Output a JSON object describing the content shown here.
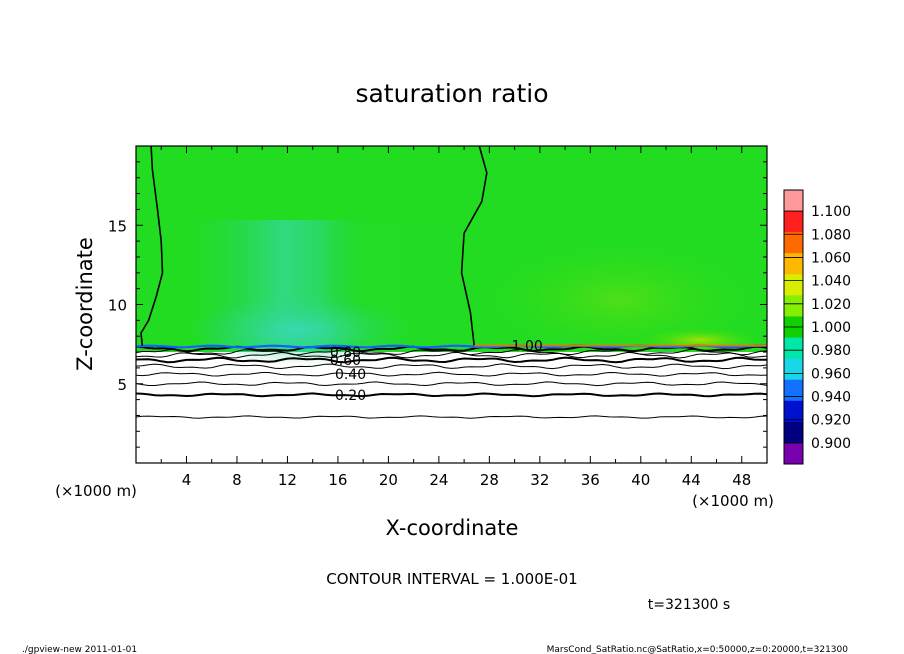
{
  "chart_data": {
    "type": "heatmap",
    "title": "saturation ratio",
    "xlabel": "X-coordinate",
    "ylabel": "Z-coordinate",
    "x_unit": "(×1000 m)",
    "y_unit": "(×1000 m)",
    "xlim": [
      0,
      50
    ],
    "ylim": [
      0,
      20
    ],
    "x_ticks": [
      4,
      8,
      12,
      16,
      20,
      24,
      28,
      32,
      36,
      40,
      44,
      48
    ],
    "y_ticks": [
      5,
      10,
      15
    ],
    "colorbar": {
      "levels": [
        "1.100",
        "1.080",
        "1.060",
        "1.040",
        "1.020",
        "1.000",
        "0.980",
        "0.960",
        "0.940",
        "0.920",
        "0.900"
      ],
      "colors": [
        "#ff9a9a",
        "#ff2020",
        "#ff6a00",
        "#ffb800",
        "#d8ee00",
        "#86ee00",
        "#10d000",
        "#00e8a8",
        "#18d8e8",
        "#1470ff",
        "#0010d0",
        "#000080",
        "#7800b0"
      ]
    },
    "contour_interval_text": "CONTOUR INTERVAL = 1.000E-01",
    "contour_labels": [
      {
        "text": "0.20",
        "x": 17.0,
        "z": 4.3
      },
      {
        "text": "0.40",
        "x": 17.0,
        "z": 5.6
      },
      {
        "text": "0.60",
        "x": 16.6,
        "z": 6.5
      },
      {
        "text": "0.80",
        "x": 16.6,
        "z": 7.0
      },
      {
        "text": "1.00",
        "x": 31.0,
        "z": 7.4
      }
    ],
    "time_label": "t=321300 s"
  },
  "footer": {
    "left": "./gpview-new   2011-01-01",
    "right": "MarsCond_SatRatio.nc@SatRatio,x=0:50000,z=0:20000,t=321300"
  }
}
